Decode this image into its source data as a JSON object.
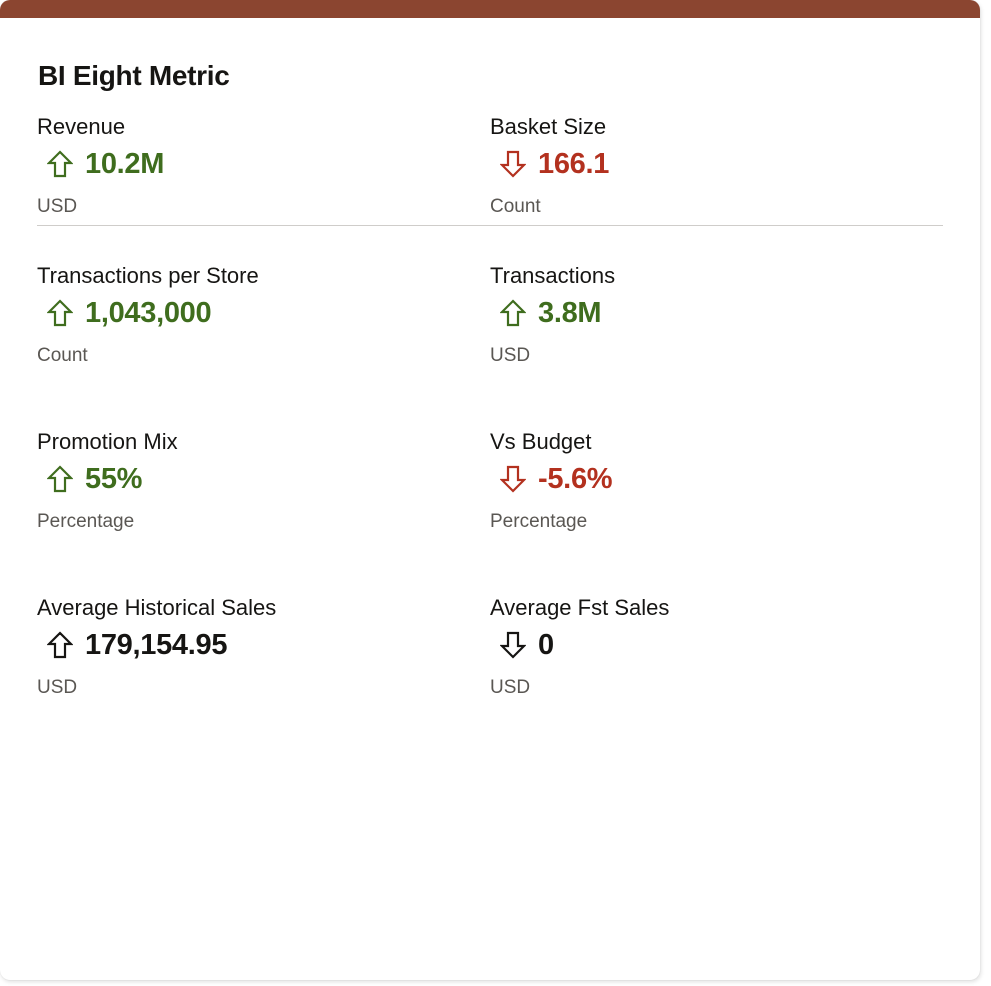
{
  "widget": {
    "title": "BI Eight Metric",
    "accent_color": "#8b4530"
  },
  "colors": {
    "up": "#3f6d1e",
    "down": "#b3311f",
    "neutral": "#161513"
  },
  "metrics": [
    {
      "label": "Revenue",
      "value": "10.2M",
      "unit": "USD",
      "trend": "up",
      "tone": "up"
    },
    {
      "label": "Basket Size",
      "value": "166.1",
      "unit": "Count",
      "trend": "down",
      "tone": "down"
    },
    {
      "label": "Transactions per Store",
      "value": "1,043,000",
      "unit": "Count",
      "trend": "up",
      "tone": "up"
    },
    {
      "label": "Transactions",
      "value": "3.8M",
      "unit": "USD",
      "trend": "up",
      "tone": "up"
    },
    {
      "label": "Promotion Mix",
      "value": "55%",
      "unit": "Percentage",
      "trend": "up",
      "tone": "up"
    },
    {
      "label": "Vs Budget",
      "value": "-5.6%",
      "unit": "Percentage",
      "trend": "down",
      "tone": "down"
    },
    {
      "label": "Average Historical Sales",
      "value": "179,154.95",
      "unit": "USD",
      "trend": "up",
      "tone": "neutral"
    },
    {
      "label": "Average Fst Sales",
      "value": "0",
      "unit": "USD",
      "trend": "down",
      "tone": "neutral"
    }
  ]
}
